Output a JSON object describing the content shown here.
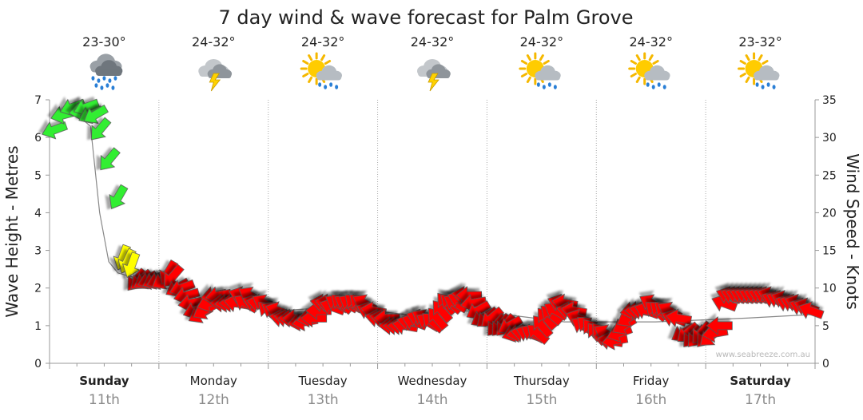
{
  "chart_data": {
    "type": "line",
    "title": "7 day wind & wave forecast for Palm Grove",
    "left_axis": {
      "label": "Wave Height - Metres",
      "ylim": [
        0,
        7
      ],
      "ticks": [
        "0",
        "1",
        "2",
        "3",
        "4",
        "5",
        "6",
        "7"
      ]
    },
    "right_axis": {
      "label": "Wind Speed - Knots",
      "ylim": [
        0,
        35
      ],
      "ticks": [
        "0",
        "5",
        "10",
        "15",
        "20",
        "25",
        "30",
        "35"
      ]
    },
    "x_unit": "hours since start of Sunday 11th",
    "xlim": [
      -3,
      165
    ],
    "grid": true,
    "watermark": "www.seabreeze.com.au",
    "days": [
      {
        "name": "Sunday",
        "date": "11th",
        "bold": true,
        "temp": "23-30°",
        "icon": "heavy-rain-icon"
      },
      {
        "name": "Monday",
        "date": "12th",
        "bold": false,
        "temp": "24-32°",
        "icon": "thunderstorm-icon"
      },
      {
        "name": "Tuesday",
        "date": "13th",
        "bold": false,
        "temp": "24-32°",
        "icon": "sun-rain-icon"
      },
      {
        "name": "Wednesday",
        "date": "14th",
        "bold": false,
        "temp": "24-32°",
        "icon": "thunderstorm-icon"
      },
      {
        "name": "Thursday",
        "date": "15th",
        "bold": false,
        "temp": "24-32°",
        "icon": "sun-rain-icon"
      },
      {
        "name": "Friday",
        "date": "16th",
        "bold": false,
        "temp": "24-32°",
        "icon": "sun-rain-icon"
      },
      {
        "name": "Saturday",
        "date": "17th",
        "bold": true,
        "temp": "23-32°",
        "icon": "sun-rain-icon"
      }
    ],
    "wave_series": {
      "name": "Wave height",
      "unit": "m",
      "color": "#888888",
      "points": [
        [
          0,
          6.6
        ],
        [
          3,
          6.6
        ],
        [
          6,
          6.3
        ],
        [
          8,
          4.0
        ],
        [
          10,
          2.7
        ],
        [
          12,
          2.4
        ],
        [
          18,
          2.2
        ],
        [
          30,
          1.7
        ],
        [
          48,
          1.4
        ],
        [
          60,
          1.5
        ],
        [
          75,
          1.3
        ],
        [
          90,
          1.4
        ],
        [
          110,
          1.1
        ],
        [
          130,
          1.1
        ],
        [
          150,
          1.2
        ],
        [
          165,
          1.3
        ]
      ]
    },
    "wind_series": {
      "name": "Wind",
      "unit": "knots",
      "color_thresholds": [
        {
          "max": 12,
          "color": "#ff0000"
        },
        {
          "max": 20,
          "color": "#ffff00"
        },
        {
          "max": 99,
          "color": "#33ee33"
        }
      ],
      "points": [
        [
          -2,
          31
        ],
        [
          0,
          33
        ],
        [
          2,
          34
        ],
        [
          4,
          33.5
        ],
        [
          5,
          34
        ],
        [
          6,
          33
        ],
        [
          7,
          33
        ],
        [
          8,
          31
        ],
        [
          10,
          27
        ],
        [
          12,
          22
        ],
        [
          13,
          14
        ],
        [
          14,
          13.5
        ],
        [
          15,
          13
        ],
        [
          16,
          11
        ],
        [
          17,
          11
        ],
        [
          18,
          11
        ],
        [
          19,
          11
        ],
        [
          20,
          11
        ],
        [
          21,
          11
        ],
        [
          22,
          11
        ],
        [
          23,
          12
        ],
        [
          24,
          11.5
        ],
        [
          25,
          10
        ],
        [
          26,
          10
        ],
        [
          27,
          9
        ],
        [
          28,
          8
        ],
        [
          29,
          7
        ],
        [
          30,
          6.5
        ],
        [
          31,
          7
        ],
        [
          32,
          8
        ],
        [
          33,
          9
        ],
        [
          34,
          9
        ],
        [
          35,
          8
        ],
        [
          36,
          8
        ],
        [
          37,
          8
        ],
        [
          38,
          8
        ],
        [
          39,
          9
        ],
        [
          40,
          8
        ],
        [
          41,
          9
        ],
        [
          42,
          8
        ],
        [
          43,
          8
        ],
        [
          44,
          8
        ],
        [
          45,
          7
        ],
        [
          46,
          7
        ],
        [
          47,
          7
        ],
        [
          48,
          6
        ],
        [
          49,
          6
        ],
        [
          50,
          6
        ],
        [
          51,
          6
        ],
        [
          52,
          5.5
        ],
        [
          53,
          5.5
        ],
        [
          54,
          6
        ],
        [
          55,
          6
        ],
        [
          56,
          7
        ],
        [
          57,
          8
        ],
        [
          58,
          8
        ],
        [
          59,
          7.5
        ],
        [
          60,
          8
        ],
        [
          61,
          8
        ],
        [
          62,
          8
        ],
        [
          63,
          8
        ],
        [
          64,
          8
        ],
        [
          65,
          8
        ],
        [
          66,
          8
        ],
        [
          67,
          7
        ],
        [
          68,
          7
        ],
        [
          69,
          6
        ],
        [
          70,
          6
        ],
        [
          71,
          6
        ],
        [
          72,
          5
        ],
        [
          73,
          5
        ],
        [
          74,
          5
        ],
        [
          75,
          5
        ],
        [
          76,
          5.5
        ],
        [
          77,
          5.5
        ],
        [
          78,
          6
        ],
        [
          79,
          6
        ],
        [
          80,
          5.5
        ],
        [
          81,
          5.5
        ],
        [
          82,
          6
        ],
        [
          83,
          7
        ],
        [
          84,
          8
        ],
        [
          85,
          8
        ],
        [
          86,
          8
        ],
        [
          87,
          8.5
        ],
        [
          88,
          9
        ],
        [
          89,
          9
        ],
        [
          90,
          8
        ],
        [
          91,
          7
        ],
        [
          92,
          6
        ],
        [
          93,
          6
        ],
        [
          94,
          6
        ],
        [
          95,
          5
        ],
        [
          96,
          5
        ],
        [
          97,
          5
        ],
        [
          98,
          5
        ],
        [
          99,
          4
        ],
        [
          100,
          4
        ],
        [
          101,
          4
        ],
        [
          102,
          4
        ],
        [
          103,
          4
        ],
        [
          104,
          4
        ],
        [
          105,
          5
        ],
        [
          106,
          6
        ],
        [
          107,
          6.5
        ],
        [
          108,
          7
        ],
        [
          109,
          8
        ],
        [
          110,
          8
        ],
        [
          111,
          7
        ],
        [
          112,
          7
        ],
        [
          113,
          6
        ],
        [
          114,
          5
        ],
        [
          115,
          5
        ],
        [
          116,
          4.5
        ],
        [
          117,
          4
        ],
        [
          118,
          4
        ],
        [
          119,
          4
        ],
        [
          120,
          3
        ],
        [
          121,
          3
        ],
        [
          122,
          4
        ],
        [
          123,
          5
        ],
        [
          124,
          6
        ],
        [
          125,
          7
        ],
        [
          126,
          7
        ],
        [
          127,
          7
        ],
        [
          128,
          7
        ],
        [
          129,
          8
        ],
        [
          130,
          7
        ],
        [
          131,
          7
        ],
        [
          132,
          7
        ],
        [
          133,
          7
        ],
        [
          134,
          6
        ],
        [
          135,
          6
        ],
        [
          136,
          4
        ],
        [
          137,
          4
        ],
        [
          138,
          3.5
        ],
        [
          139,
          3.5
        ],
        [
          140,
          4
        ],
        [
          141,
          3.5
        ],
        [
          142,
          3.5
        ],
        [
          143,
          4
        ],
        [
          144,
          5
        ],
        [
          145,
          8
        ],
        [
          146,
          9
        ],
        [
          147,
          9
        ],
        [
          148,
          9
        ],
        [
          149,
          9
        ],
        [
          150,
          9
        ],
        [
          151,
          9
        ],
        [
          152,
          9
        ],
        [
          153,
          9
        ],
        [
          154,
          9
        ],
        [
          155,
          9
        ],
        [
          156,
          8.5
        ],
        [
          157,
          8.5
        ],
        [
          158,
          8.5
        ],
        [
          159,
          8
        ],
        [
          160,
          8
        ],
        [
          161,
          8
        ],
        [
          162,
          7.5
        ],
        [
          163,
          7.5
        ],
        [
          164,
          7
        ]
      ],
      "directions_deg": [
        70,
        75,
        70,
        80,
        70,
        65,
        60,
        40,
        40,
        30,
        20,
        25,
        20,
        40,
        50,
        60,
        70,
        65,
        70,
        60,
        30,
        40,
        60,
        70,
        75,
        80,
        70,
        60,
        60,
        70,
        80,
        80,
        90,
        85,
        90,
        100,
        110,
        120,
        120,
        110,
        100,
        120,
        130,
        120,
        110,
        100,
        100,
        90,
        90,
        80,
        80,
        80,
        90,
        90,
        100,
        100,
        110,
        120,
        130,
        120,
        120,
        130,
        130,
        120,
        110,
        100,
        100,
        100,
        90,
        90,
        90,
        90,
        100,
        100,
        110,
        110,
        120,
        120,
        130,
        140,
        140,
        140,
        130,
        120,
        110,
        100,
        90,
        80,
        60,
        60,
        50,
        50,
        40,
        40,
        40,
        60,
        70,
        80,
        100,
        110,
        120,
        130,
        140,
        140,
        130,
        120,
        110,
        100,
        100,
        100,
        110,
        120,
        130,
        140,
        140,
        140,
        120,
        100,
        80,
        70,
        60,
        60,
        80,
        90,
        100,
        110,
        120,
        130,
        130,
        130,
        120,
        110,
        100,
        60,
        50,
        40,
        40,
        40,
        40,
        50,
        80,
        90,
        110,
        110,
        110,
        110,
        110,
        110,
        110,
        110,
        110,
        110,
        110,
        110,
        110,
        110,
        110,
        110,
        110,
        110,
        110,
        110
      ]
    }
  }
}
